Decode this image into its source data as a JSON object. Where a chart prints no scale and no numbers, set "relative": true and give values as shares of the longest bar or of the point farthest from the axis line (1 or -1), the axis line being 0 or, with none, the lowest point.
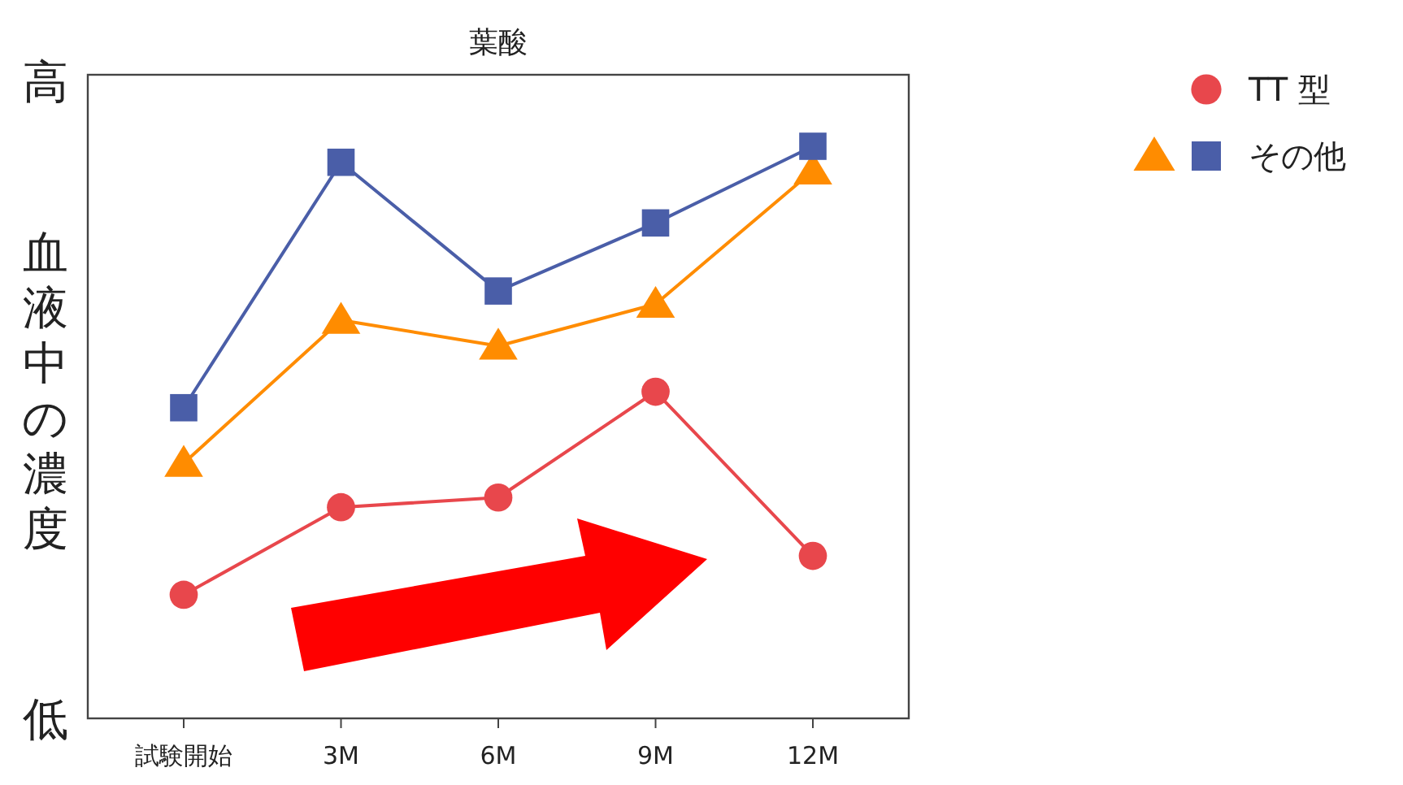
{
  "chart_data": {
    "type": "line",
    "title": "葉酸",
    "ylabel": "血液中の濃度",
    "annotations": [
      "高",
      "低"
    ],
    "categories": [
      "試験開始",
      "3M",
      "6M",
      "9M",
      "12M"
    ],
    "relative": true,
    "legend": "right",
    "series": [
      {
        "name": "TT 型",
        "color": "#e8474c",
        "marker": "circle",
        "values": [
          0.216,
          0.369,
          0.386,
          0.571,
          0.284
        ]
      },
      {
        "color": "#ff8c00",
        "marker": "triangle",
        "values": [
          0.446,
          0.696,
          0.651,
          0.724,
          0.957
        ]
      },
      {
        "name": "その他",
        "color": "#4a5ea8",
        "marker": "square",
        "values": [
          0.543,
          0.972,
          0.747,
          0.866,
          1.0
        ]
      }
    ]
  }
}
